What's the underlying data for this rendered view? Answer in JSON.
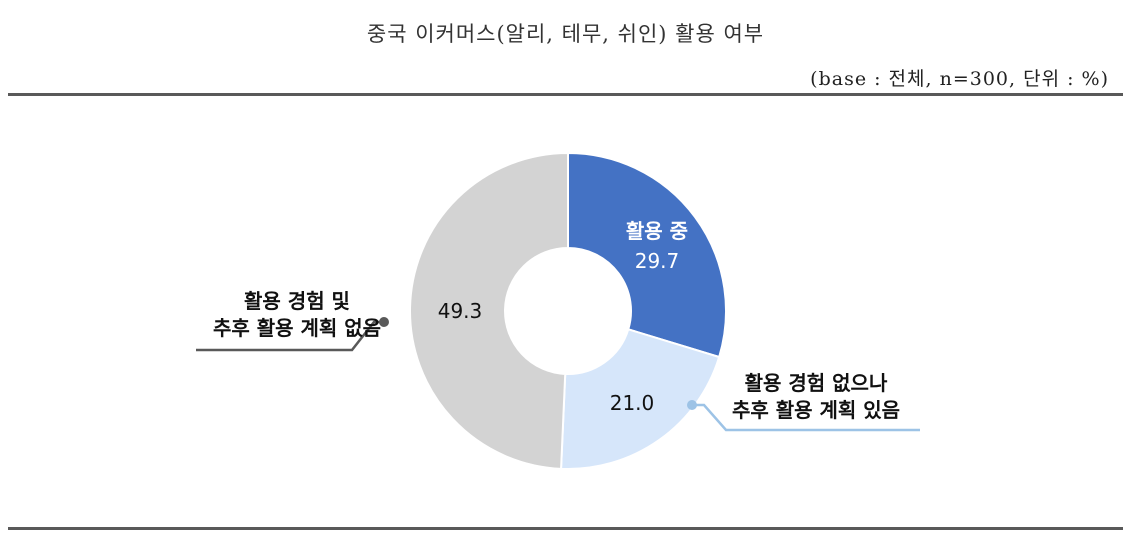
{
  "header": {
    "title": "중국 이커머스(알리, 테무, 쉬인) 활용 여부",
    "base_note": "(base : 전체, n=300, 단위 : %)"
  },
  "chart_data": {
    "type": "pie",
    "donut": true,
    "unit": "%",
    "slices": [
      {
        "label_lines": [
          "활용 중"
        ],
        "value": 29.7,
        "value_text": "29.7",
        "color": "#4472C4",
        "label_color": "#FFFFFF"
      },
      {
        "label_lines": [
          "활용 경험 없으나",
          "추후 활용 계획 있음"
        ],
        "value": 21.0,
        "value_text": "21.0",
        "color": "#D6E6FA",
        "label_color": "#111111"
      },
      {
        "label_lines": [
          "활용 경험 및",
          "추후 활용 계획 없음"
        ],
        "value": 49.3,
        "value_text": "49.3",
        "color": "#D3D3D3",
        "label_color": "#111111"
      }
    ]
  }
}
